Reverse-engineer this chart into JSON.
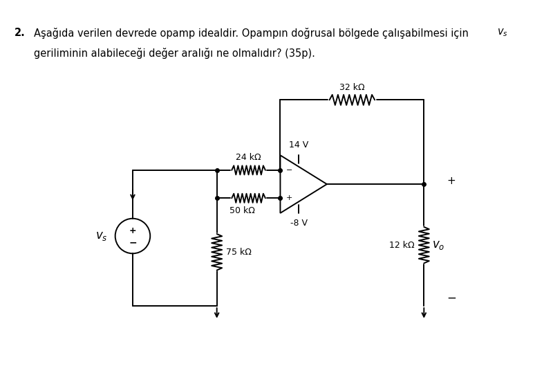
{
  "bg_color": "#ffffff",
  "circuit_color": "#000000",
  "resistor_labels": {
    "R1": "24 kΩ",
    "R2": "50 kΩ",
    "R3": "75 kΩ",
    "R4": "32 kΩ",
    "R5": "12 kΩ"
  },
  "voltage_labels": {
    "Vpos": "14 V",
    "Vneg": "-8 V"
  },
  "text_line1_pre": "2. Asağıda verilen devrede opamp idealdir. Opampın doğrusal bölgede çalışabilmesi için ",
  "text_line1_vs": "v_s",
  "text_line2": "geriliminin alabieceği değer aralığı ne olmalıdır? (35p).",
  "text_line2_correct": "geriliminin alabileceği değer aralığı ne olmalıdır? (35p).",
  "lw": 1.4,
  "fs_label": 9,
  "fs_text": 10.5
}
